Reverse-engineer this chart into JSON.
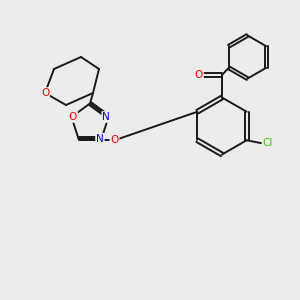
{
  "background_color": "#ececec",
  "bond_color": "#1a1a1a",
  "atom_colors": {
    "O": "#ff0000",
    "N": "#0000ee",
    "Cl": "#33cc00",
    "C": "#1a1a1a"
  },
  "lw": 1.4,
  "fs": 7.5
}
